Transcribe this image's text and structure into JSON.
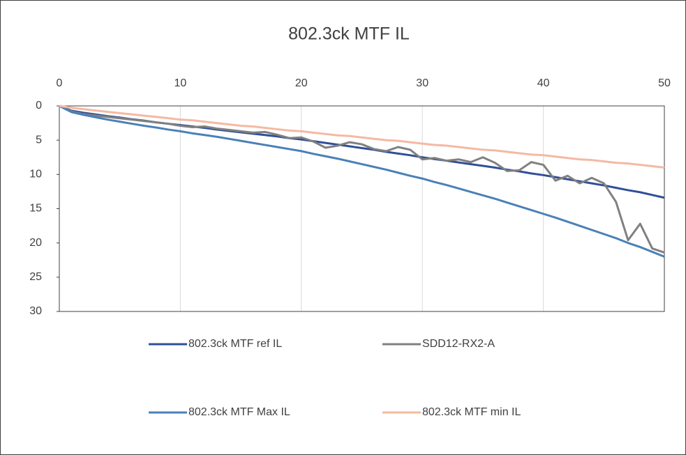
{
  "chart_data": {
    "type": "line",
    "title": "802.3ck MTF  IL",
    "x": [
      0,
      1,
      2,
      3,
      4,
      5,
      6,
      7,
      8,
      9,
      10,
      11,
      12,
      13,
      14,
      15,
      16,
      17,
      18,
      19,
      20,
      21,
      22,
      23,
      24,
      25,
      26,
      27,
      28,
      29,
      30,
      31,
      32,
      33,
      34,
      35,
      36,
      37,
      38,
      39,
      40,
      41,
      42,
      43,
      44,
      45,
      46,
      47,
      48,
      49,
      50
    ],
    "xlim": [
      0,
      50
    ],
    "xticks": [
      0,
      10,
      20,
      30,
      40,
      50
    ],
    "ylim": [
      0,
      30
    ],
    "yticks": [
      0,
      5,
      10,
      15,
      20,
      25,
      30
    ],
    "y_inverted": true,
    "x_axis_position": "top",
    "grid": "x",
    "legend": "bottom",
    "series": [
      {
        "name": "802.3ck MTF ref IL",
        "color": "#2f4f98",
        "values": [
          0,
          0.7,
          1.0,
          1.25,
          1.5,
          1.7,
          1.95,
          2.15,
          2.4,
          2.6,
          2.8,
          3.0,
          3.2,
          3.45,
          3.65,
          3.85,
          4.05,
          4.25,
          4.45,
          4.7,
          4.9,
          5.15,
          5.4,
          5.65,
          5.9,
          6.15,
          6.4,
          6.7,
          6.95,
          7.2,
          7.5,
          7.75,
          8.0,
          8.25,
          8.5,
          8.75,
          9.0,
          9.3,
          9.55,
          9.85,
          10.1,
          10.4,
          10.7,
          11.0,
          11.3,
          11.6,
          11.95,
          12.3,
          12.6,
          13.0,
          13.4
        ]
      },
      {
        "name": "SDD12-RX2-A",
        "color": "#808080",
        "values": [
          0,
          0.8,
          1.2,
          1.4,
          1.6,
          1.8,
          2.0,
          2.2,
          2.4,
          2.6,
          2.9,
          3.1,
          3.0,
          3.3,
          3.5,
          3.7,
          3.9,
          3.8,
          4.2,
          4.7,
          4.6,
          5.2,
          6.1,
          5.8,
          5.3,
          5.6,
          6.3,
          6.6,
          6.0,
          6.4,
          7.8,
          7.6,
          8.0,
          7.8,
          8.2,
          7.5,
          8.3,
          9.5,
          9.4,
          8.2,
          8.6,
          10.9,
          10.2,
          11.3,
          10.5,
          11.3,
          14.0,
          19.6,
          17.2,
          20.8,
          21.4
        ]
      },
      {
        "name": "802.3ck MTF Max IL",
        "color": "#4a80b8",
        "values": [
          0,
          0.9,
          1.3,
          1.65,
          2.0,
          2.3,
          2.6,
          2.9,
          3.15,
          3.45,
          3.7,
          4.0,
          4.25,
          4.5,
          4.8,
          5.1,
          5.4,
          5.7,
          6.0,
          6.3,
          6.6,
          7.0,
          7.35,
          7.7,
          8.1,
          8.5,
          8.9,
          9.3,
          9.75,
          10.2,
          10.6,
          11.1,
          11.55,
          12.05,
          12.55,
          13.05,
          13.55,
          14.1,
          14.65,
          15.2,
          15.75,
          16.3,
          16.9,
          17.5,
          18.1,
          18.7,
          19.3,
          20.0,
          20.6,
          21.3,
          22.0
        ]
      },
      {
        "name": "802.3ck MTF min IL",
        "color": "#f4b9a2",
        "values": [
          0,
          0.27,
          0.47,
          0.67,
          0.86,
          1.05,
          1.23,
          1.42,
          1.6,
          1.79,
          2.0,
          2.1,
          2.3,
          2.5,
          2.7,
          2.9,
          3.0,
          3.2,
          3.4,
          3.6,
          3.7,
          3.9,
          4.1,
          4.3,
          4.4,
          4.6,
          4.8,
          5.0,
          5.1,
          5.3,
          5.5,
          5.7,
          5.8,
          6.0,
          6.2,
          6.4,
          6.5,
          6.7,
          6.9,
          7.1,
          7.2,
          7.4,
          7.6,
          7.8,
          7.9,
          8.1,
          8.3,
          8.4,
          8.6,
          8.8,
          9.0
        ]
      }
    ]
  }
}
